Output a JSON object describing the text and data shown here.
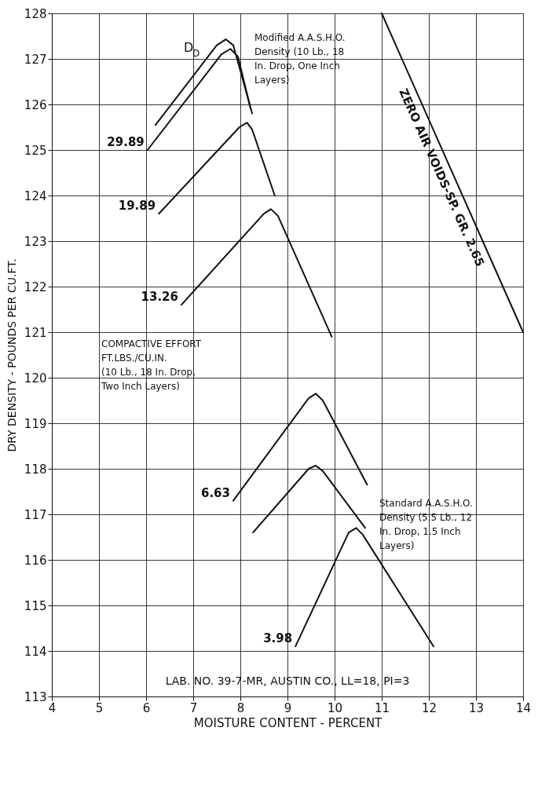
{
  "chart_data": {
    "type": "line",
    "xlabel": "MOISTURE CONTENT - PERCENT",
    "ylabel": "DRY DENSITY - POUNDS PER CU.FT.",
    "xlim": [
      4,
      14
    ],
    "ylim": [
      113,
      128
    ],
    "xticks": [
      4,
      5,
      6,
      7,
      8,
      9,
      10,
      11,
      12,
      13,
      14
    ],
    "yticks": [
      113,
      114,
      115,
      116,
      117,
      118,
      119,
      120,
      121,
      122,
      123,
      124,
      125,
      126,
      127,
      128
    ],
    "grid": true,
    "marker": "none",
    "line_style": "solid",
    "series": [
      {
        "color": "#111111",
        "x": [
          6.2,
          7.5,
          7.69,
          7.85,
          8.25
        ],
        "values": [
          125.55,
          127.3,
          127.43,
          127.3,
          125.8
        ]
      },
      {
        "name": "29.89",
        "color": "#111111",
        "x": [
          6.03,
          7.6,
          7.79,
          7.95,
          8.22
        ],
        "values": [
          125.0,
          127.1,
          127.22,
          127.05,
          125.9
        ]
      },
      {
        "name": "19.89",
        "color": "#111111",
        "x": [
          6.27,
          7.98,
          8.14,
          8.25,
          8.73
        ],
        "values": [
          123.6,
          125.5,
          125.6,
          125.45,
          124.0
        ]
      },
      {
        "name": "13.26",
        "color": "#111111",
        "x": [
          6.75,
          8.5,
          8.65,
          8.8,
          9.94
        ],
        "values": [
          121.6,
          123.6,
          123.7,
          123.55,
          120.9
        ]
      },
      {
        "name": "6.63",
        "color": "#111111",
        "x": [
          7.85,
          9.45,
          9.6,
          9.75,
          10.69
        ],
        "values": [
          117.3,
          119.55,
          119.65,
          119.5,
          117.65
        ]
      },
      {
        "color": "#111111",
        "x": [
          8.27,
          9.45,
          9.6,
          9.75,
          10.65
        ],
        "values": [
          116.6,
          118.0,
          118.07,
          117.95,
          116.7
        ]
      },
      {
        "name": "3.98",
        "color": "#111111",
        "x": [
          9.17,
          10.3,
          10.46,
          10.6,
          12.1
        ],
        "values": [
          114.1,
          116.6,
          116.7,
          116.55,
          114.1
        ]
      },
      {
        "name": "ZERO AIR VOIDS-SP. GR. 2.65",
        "color": "#111111",
        "x": [
          11,
          14
        ],
        "values": [
          128,
          121
        ]
      }
    ],
    "annotations": [
      "Modified A.A.S.H.O.\nDensity (10 Lb., 18\nIn. Drop, One Inch\nLayers)",
      "D$_{D}$",
      "COMPACTIVE EFFORT\nFT.LBS./CU.IN.\n(10 Lb., 18 In. Drop,\nTwo Inch Layers)",
      "Standard A.A.S.H.O.\nDensity (5.5 Lb., 12\nIn. Drop, 1.5 Inch\nLayers)",
      "LAB. NO. 39-7-MR, AUSTIN CO., LL=18, PI=3"
    ]
  }
}
